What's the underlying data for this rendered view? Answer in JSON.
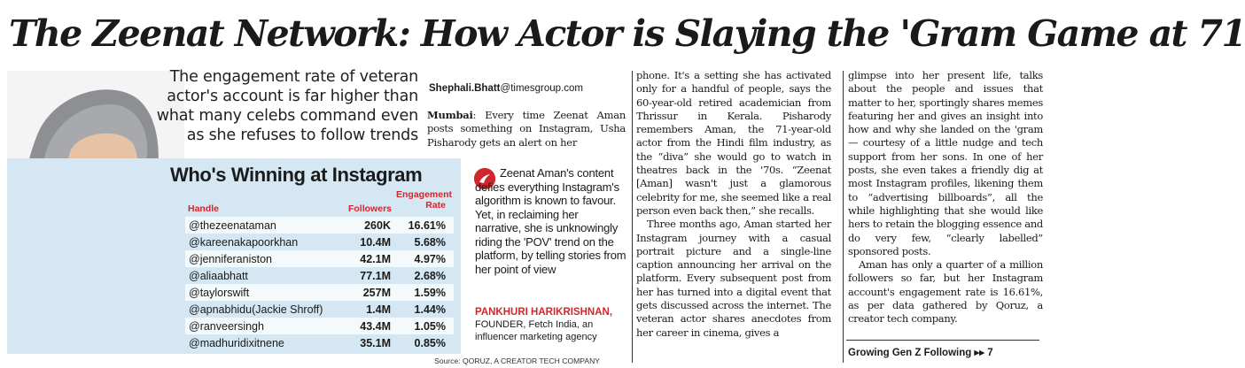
{
  "headline": "The Zeenat Network: How Actor is Slaying the 'Gram Game at 71",
  "deck": "The engagement rate of veteran actor's account is far higher than what many celebs command even as she refuses to follow trends",
  "byline": {
    "name": "Shephali.Bhatt",
    "email": "@timesgroup.com"
  },
  "lede": {
    "dateline": "Mumbai",
    "text": ": Every time Zeenat Aman posts something on Instagram, Usha Pisharody gets an alert on her"
  },
  "column2": [
    "phone. It's a setting she has activated only for a handful of people, says the 60-year-old retired academician from Thrissur in Kerala. Pisharody remembers Aman, the 71-year-old actor from the Hindi film industry, as the “diva” she would go to watch in theatres back in the '70s. “Zeenat [Aman] wasn't just a glamorous celebrity for me, she seemed like a real person even back then,” she recalls.",
    "Three months ago, Aman started her Instagram journey with a casual portrait picture and a single-line caption announcing her arrival on the platform. Every subsequent post from her has turned into a digital event that gets discussed across the internet. The veteran actor shares anecdotes from her career in cinema, gives a"
  ],
  "column3": [
    "glimpse into her present life, talks about the people and issues that matter to her, sportingly shares memes featuring her and gives an insight into how and why she landed on the 'gram — courtesy of a little nudge and tech support from her sons. In one of her posts, she even takes a friendly dig at most Instagram profiles, likening them to “advertising billboards”, all the while highlighting that she would like hers to retain the blogging essence and do very few, “clearly labelled” sponsored posts.",
    "Aman has only a quarter of a million followers so far, but her Instagram account's engagement rate is 16.61%, as per data gathered by Qoruz, a creator tech company."
  ],
  "teaser": "Growing Gen Z Following ▸▸ 7",
  "quote": {
    "text": "Zeenat Aman's content defies everything Instagram's algorithm is known to favour. Yet, in reclaiming her narrative, she is unknowingly riding the 'POV' trend on the platform, by telling stories from her point of view",
    "name": "PANKHURI HARIKRISHNAN,",
    "role": "FOUNDER, Fetch India, an influencer marketing agency"
  },
  "source": "Source: QORUZ, A CREATOR TECH COMPANY",
  "colors": {
    "accent": "#d1262d",
    "panel": "#d4e7f2"
  },
  "chart_data": {
    "type": "table",
    "title": "Who's Winning at Instagram",
    "columns": [
      "Handle",
      "Followers",
      "Engagement Rate"
    ],
    "rows": [
      {
        "handle": "@thezeenataman",
        "followers": "260K",
        "engagement": "16.61%"
      },
      {
        "handle": "@kareenakapoorkhan",
        "followers": "10.4M",
        "engagement": "5.68%"
      },
      {
        "handle": "@jenniferaniston",
        "followers": "42.1M",
        "engagement": "4.97%"
      },
      {
        "handle": "@aliaabhatt",
        "followers": "77.1M",
        "engagement": "2.68%"
      },
      {
        "handle": "@taylorswift",
        "followers": "257M",
        "engagement": "1.59%"
      },
      {
        "handle": "@apnabhidu(Jackie Shroff)",
        "followers": "1.4M",
        "engagement": "1.44%"
      },
      {
        "handle": "@ranveersingh",
        "followers": "43.4M",
        "engagement": "1.05%"
      },
      {
        "handle": "@madhuridixitnene",
        "followers": "35.1M",
        "engagement": "0.85%"
      }
    ]
  }
}
